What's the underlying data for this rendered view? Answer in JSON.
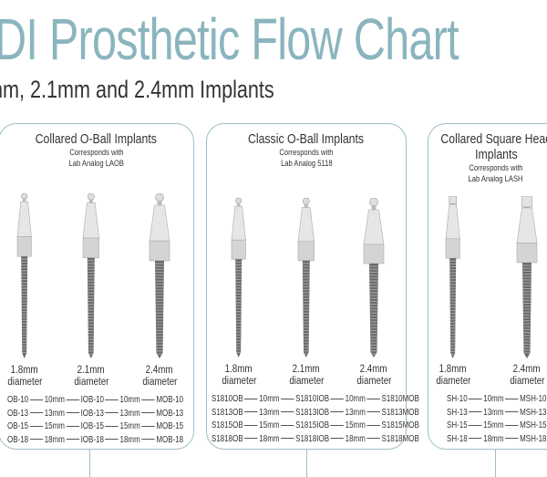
{
  "header": {
    "title": "DI Prosthetic Flow Chart",
    "subtitle": "nm, 2.1mm and 2.4mm Implants"
  },
  "colors": {
    "title": "#8ab5be",
    "card_border": "#9dbfc6"
  },
  "cards": [
    {
      "title": "Collared O-Ball Implants",
      "title2": "",
      "sub1": "Corresponds with",
      "sub2": "Lab Analog LAOB",
      "implants": [
        {
          "size": "1.8mm",
          "label": "diameter",
          "head": "ball"
        },
        {
          "size": "2.1mm",
          "label": "diameter",
          "head": "ball"
        },
        {
          "size": "2.4mm",
          "label": "diameter",
          "head": "ball"
        }
      ],
      "rows": [
        [
          "OB-10",
          "10mm",
          "IOB-10",
          "10mm",
          "MOB-10"
        ],
        [
          "OB-13",
          "13mm",
          "IOB-13",
          "13mm",
          "MOB-13"
        ],
        [
          "OB-15",
          "15mm",
          "IOB-15",
          "15mm",
          "MOB-15"
        ],
        [
          "OB-18",
          "18mm",
          "IOB-18",
          "18mm",
          "MOB-18"
        ]
      ]
    },
    {
      "title": "Classic O-Ball Implants",
      "title2": "",
      "sub1": "Corresponds with",
      "sub2": "Lab Analog 5118",
      "implants": [
        {
          "size": "1.8mm",
          "label": "diameter",
          "head": "ball"
        },
        {
          "size": "2.1mm",
          "label": "diameter",
          "head": "ball"
        },
        {
          "size": "2.4mm",
          "label": "diameter",
          "head": "ball"
        }
      ],
      "rows": [
        [
          "S1810OB",
          "10mm",
          "S1810IOB",
          "10mm",
          "S1810MOB"
        ],
        [
          "S1813OB",
          "13mm",
          "S1813IOB",
          "13mm",
          "S1813MOB"
        ],
        [
          "S1815OB",
          "15mm",
          "S1815IOB",
          "15mm",
          "S1815MOB"
        ],
        [
          "S1818OB",
          "18mm",
          "S1818IOB",
          "18mm",
          "S1818MOB"
        ]
      ]
    },
    {
      "title": "Collared Square Head",
      "title2": "Implants",
      "sub1": "Corresponds with",
      "sub2": "Lab Analog LASH",
      "implants": [
        {
          "size": "1.8mm",
          "label": "diameter",
          "head": "square"
        },
        {
          "size": "2.4mm",
          "label": "diameter",
          "head": "square"
        }
      ],
      "rows": [
        [
          "SH-10",
          "10mm",
          "MSH-10"
        ],
        [
          "SH-13",
          "13mm",
          "MSH-13"
        ],
        [
          "SH-15",
          "15mm",
          "MSH-15"
        ],
        [
          "SH-18",
          "18mm",
          "MSH-18"
        ]
      ]
    }
  ]
}
